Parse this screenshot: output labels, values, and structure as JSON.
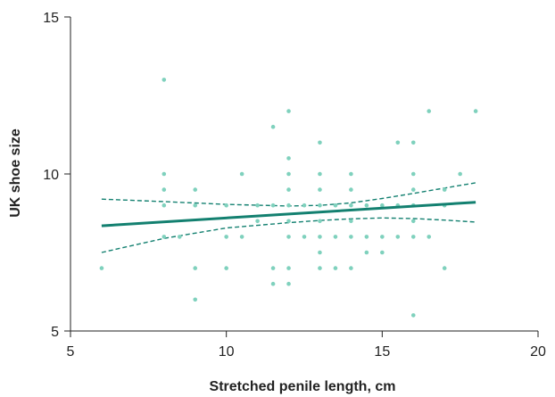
{
  "chart_data": {
    "type": "scatter",
    "title": "",
    "xlabel": "Stretched penile length, cm",
    "ylabel": "UK shoe size",
    "xlim": [
      5,
      20
    ],
    "ylim": [
      5,
      15
    ],
    "xticks": [
      "5",
      "10",
      "15",
      "20"
    ],
    "yticks": [
      "5",
      "10",
      "15"
    ],
    "grid": false,
    "legend": "none",
    "colors": {
      "points": "#7fd1bd",
      "fit_line": "#138070",
      "ci_line": "#138070",
      "axis": "#222222"
    },
    "points": [
      [
        6,
        7
      ],
      [
        8,
        13
      ],
      [
        8,
        10
      ],
      [
        8,
        9.5
      ],
      [
        8,
        9
      ],
      [
        8,
        8
      ],
      [
        8.5,
        8
      ],
      [
        9,
        9.5
      ],
      [
        9,
        9
      ],
      [
        9,
        7
      ],
      [
        9,
        6
      ],
      [
        10,
        9
      ],
      [
        10,
        8
      ],
      [
        10,
        7
      ],
      [
        10.5,
        10
      ],
      [
        10.5,
        8
      ],
      [
        11,
        9
      ],
      [
        11,
        8.5
      ],
      [
        11.5,
        11.5
      ],
      [
        11.5,
        9
      ],
      [
        11.5,
        7
      ],
      [
        11.5,
        6.5
      ],
      [
        12,
        12
      ],
      [
        12,
        10.5
      ],
      [
        12,
        10
      ],
      [
        12,
        9.5
      ],
      [
        12,
        9
      ],
      [
        12,
        8.5
      ],
      [
        12,
        8
      ],
      [
        12,
        7
      ],
      [
        12,
        6.5
      ],
      [
        12.5,
        9
      ],
      [
        12.5,
        8
      ],
      [
        13,
        11
      ],
      [
        13,
        10
      ],
      [
        13,
        9.5
      ],
      [
        13,
        9
      ],
      [
        13,
        8.5
      ],
      [
        13,
        8
      ],
      [
        13,
        7.5
      ],
      [
        13,
        7
      ],
      [
        13.5,
        9
      ],
      [
        13.5,
        8
      ],
      [
        13.5,
        7
      ],
      [
        14,
        10
      ],
      [
        14,
        9.5
      ],
      [
        14,
        9
      ],
      [
        14,
        8.5
      ],
      [
        14,
        8
      ],
      [
        14,
        7
      ],
      [
        14.5,
        9
      ],
      [
        14.5,
        8
      ],
      [
        14.5,
        7.5
      ],
      [
        15,
        9
      ],
      [
        15,
        8
      ],
      [
        15,
        7.5
      ],
      [
        15.5,
        11
      ],
      [
        15.5,
        9
      ],
      [
        15.5,
        8
      ],
      [
        16,
        11
      ],
      [
        16,
        10
      ],
      [
        16,
        9.5
      ],
      [
        16,
        9
      ],
      [
        16,
        8.5
      ],
      [
        16,
        8
      ],
      [
        16,
        5.5
      ],
      [
        16.5,
        12
      ],
      [
        16.5,
        8
      ],
      [
        17,
        9.5
      ],
      [
        17,
        9
      ],
      [
        17,
        7
      ],
      [
        17.5,
        10
      ],
      [
        18,
        12
      ]
    ],
    "fit_line": [
      [
        6,
        8.35
      ],
      [
        18,
        9.1
      ]
    ],
    "ci_upper": [
      [
        6,
        9.2
      ],
      [
        8,
        9.12
      ],
      [
        10,
        9.03
      ],
      [
        12,
        8.98
      ],
      [
        13,
        9.0
      ],
      [
        14,
        9.08
      ],
      [
        15,
        9.22
      ],
      [
        16,
        9.38
      ],
      [
        17,
        9.55
      ],
      [
        18,
        9.72
      ]
    ],
    "ci_lower": [
      [
        6,
        7.5
      ],
      [
        8,
        7.95
      ],
      [
        10,
        8.28
      ],
      [
        12,
        8.45
      ],
      [
        13,
        8.52
      ],
      [
        14,
        8.57
      ],
      [
        15,
        8.6
      ],
      [
        16,
        8.58
      ],
      [
        17,
        8.53
      ],
      [
        18,
        8.47
      ]
    ]
  }
}
